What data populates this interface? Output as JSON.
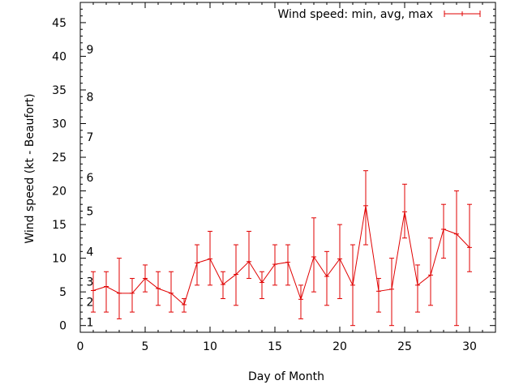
{
  "chart_data": {
    "type": "line",
    "title": "",
    "xlabel": "Day of Month",
    "ylabel": "Wind speed (kt - Beaufort)",
    "xlim": [
      0,
      32
    ],
    "ylim": [
      -1,
      48
    ],
    "x_ticks": [
      0,
      5,
      10,
      15,
      20,
      25,
      30
    ],
    "y_ticks": [
      0,
      5,
      10,
      15,
      20,
      25,
      30,
      35,
      40,
      45
    ],
    "beaufort_labels": [
      {
        "text": "1",
        "y": 0.5
      },
      {
        "text": "2",
        "y": 3.5
      },
      {
        "text": "3",
        "y": 6.5
      },
      {
        "text": "4",
        "y": 11
      },
      {
        "text": "5",
        "y": 17
      },
      {
        "text": "6",
        "y": 22
      },
      {
        "text": "7",
        "y": 28
      },
      {
        "text": "8",
        "y": 34
      },
      {
        "text": "9",
        "y": 41
      }
    ],
    "legend": {
      "label": "Wind speed: min, avg, max",
      "position": "top-right"
    },
    "grid": false,
    "series": [
      {
        "name": "Wind speed: min, avg, max",
        "color": "#e00000",
        "x": [
          1,
          2,
          3,
          4,
          5,
          6,
          7,
          8,
          9,
          10,
          11,
          12,
          13,
          14,
          15,
          16,
          17,
          18,
          19,
          20,
          21,
          22,
          23,
          24,
          25,
          26,
          27,
          28,
          29,
          30
        ],
        "avg": [
          5.2,
          5.8,
          4.8,
          4.8,
          7.0,
          5.5,
          4.8,
          3.1,
          9.3,
          9.9,
          6.1,
          7.6,
          9.5,
          6.4,
          9.1,
          9.4,
          3.9,
          10.2,
          7.3,
          9.9,
          6.0,
          17.8,
          5.1,
          5.4,
          16.9,
          6.0,
          7.5,
          14.3,
          13.6,
          11.6
        ],
        "min": [
          2,
          2,
          1,
          2,
          5,
          3,
          2,
          2,
          6,
          6,
          4,
          3,
          7,
          4,
          6,
          6,
          1,
          5,
          3,
          4,
          0,
          12,
          2,
          0,
          13,
          2,
          3,
          10,
          0,
          8
        ],
        "max": [
          8,
          8,
          10,
          7,
          9,
          8,
          8,
          4,
          12,
          14,
          8,
          12,
          14,
          8,
          12,
          12,
          6,
          16,
          11,
          15,
          12,
          23,
          7,
          10,
          21,
          9,
          13,
          18,
          20,
          18
        ]
      }
    ]
  }
}
